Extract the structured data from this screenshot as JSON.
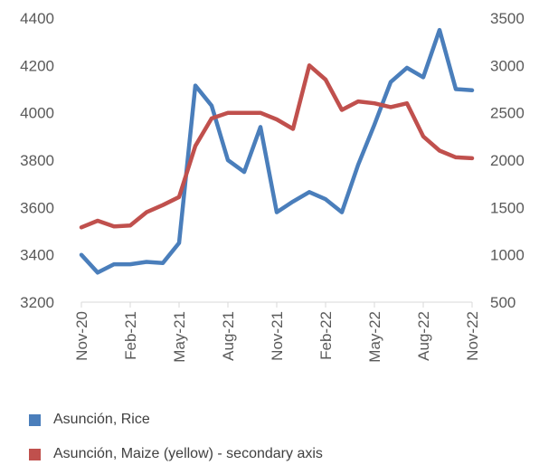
{
  "chart_data": {
    "type": "line",
    "x": [
      "Nov-20",
      "Dec-20",
      "Jan-21",
      "Feb-21",
      "Mar-21",
      "Apr-21",
      "May-21",
      "Jun-21",
      "Jul-21",
      "Aug-21",
      "Sep-21",
      "Oct-21",
      "Nov-21",
      "Dec-21",
      "Jan-22",
      "Feb-22",
      "Mar-22",
      "Apr-22",
      "May-22",
      "Jun-22",
      "Jul-22",
      "Aug-22",
      "Sep-22",
      "Oct-22",
      "Nov-22"
    ],
    "x_tick_labels": [
      "Nov-20",
      "Feb-21",
      "May-21",
      "Aug-21",
      "Nov-21",
      "Feb-22",
      "May-22",
      "Aug-22",
      "Nov-22"
    ],
    "y_left": {
      "ylim": [
        3200,
        4400
      ],
      "ticks": [
        "3200",
        "3400",
        "3600",
        "3800",
        "4000",
        "4200",
        "4400"
      ]
    },
    "y_right": {
      "ylim": [
        500,
        3500
      ],
      "ticks": [
        "500",
        "1000",
        "1500",
        "2000",
        "2500",
        "3000",
        "3500"
      ]
    },
    "series": [
      {
        "name": "Asunción, Rice",
        "axis": "left",
        "color": "#4a7ebb",
        "values": [
          3400,
          3325,
          3360,
          3360,
          3370,
          3365,
          3450,
          4115,
          4030,
          3800,
          3750,
          3940,
          3580,
          3625,
          3665,
          3635,
          3580,
          3780,
          3950,
          4130,
          4190,
          4150,
          4350,
          4100,
          4095
        ]
      },
      {
        "name": "Asunción, Maize (yellow) - secondary axis",
        "axis": "right",
        "color": "#c0504d",
        "values": [
          1290,
          1360,
          1300,
          1310,
          1450,
          1525,
          1610,
          2150,
          2440,
          2500,
          2500,
          2500,
          2430,
          2330,
          3000,
          2850,
          2530,
          2620,
          2600,
          2560,
          2600,
          2250,
          2100,
          2030,
          2020
        ]
      }
    ],
    "grid": false,
    "legend_position": "bottom-left"
  }
}
